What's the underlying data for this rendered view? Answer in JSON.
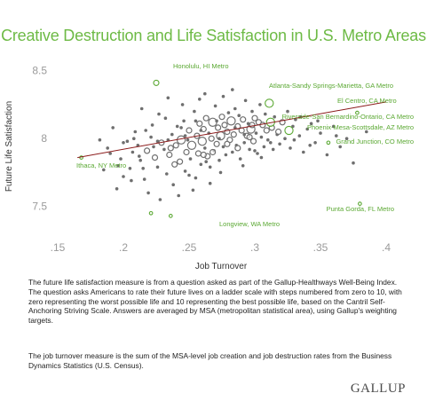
{
  "title": "Creative Destruction and Life Satisfaction in U.S. Metro Areas",
  "notes": [
    "The future life satisfaction measure is from a question asked as part of the Gallup-Healthways Well-Being Index. The question asks Americans to rate their future lives on a ladder scale with steps numbered from zero to 10, with zero representing the worst possible life and 10 representing the best possible life, based on the Cantril Self-Anchoring Striving Scale. Answers are averaged by MSA (metropolitan statistical area), using Gallup's weighting targets.",
    "The job turnover measure is the sum of the MSA-level job creation and job destruction rates from the Business Dynamics Statistics (U.S. Census)."
  ],
  "brand": "GALLUP",
  "colors": {
    "title": "#6dba45",
    "points": "#6f6f6f",
    "highlight": "#5aa832",
    "trend": "#8b1a1a"
  },
  "chart_data": {
    "type": "scatter",
    "title": "Creative Destruction and Life Satisfaction in U.S. Metro Areas",
    "xlabel": "Job Turnover",
    "ylabel": "Future Life Satisfaction",
    "xlim": [
      0.15,
      0.4
    ],
    "ylim": [
      7.4,
      8.55
    ],
    "xticks": [
      0.15,
      0.2,
      0.25,
      0.3,
      0.35,
      0.4
    ],
    "xtick_labels": [
      ".15",
      ".2",
      ".25",
      ".3",
      ".35",
      ".4"
    ],
    "yticks": [
      7.5,
      8,
      8.5
    ],
    "ytick_labels": [
      "7.5",
      "8",
      "8.5"
    ],
    "grid": false,
    "trendline": {
      "x": [
        0.165,
        0.4
      ],
      "y": [
        7.86,
        8.27
      ]
    },
    "labeled_points": [
      {
        "label": "Honolulu, HI Metro",
        "x": 0.225,
        "y": 8.41,
        "size": 2
      },
      {
        "label": "Atlanta-Sandy Springs-Marietta, GA Metro",
        "x": 0.311,
        "y": 8.26,
        "size": 3
      },
      {
        "label": "El Centro, CA Metro",
        "x": 0.378,
        "y": 8.19,
        "size": 1
      },
      {
        "label": "Riverside-San Bernardino-Ontario, CA Metro",
        "x": 0.312,
        "y": 8.12,
        "size": 3
      },
      {
        "label": "Phoenix-Mesa-Scottsdale, AZ Metro",
        "x": 0.326,
        "y": 8.06,
        "size": 3
      },
      {
        "label": "Grand Junction, CO Metro",
        "x": 0.356,
        "y": 7.97,
        "size": 1
      },
      {
        "label": "Ithaca, NY Metro",
        "x": 0.168,
        "y": 7.86,
        "size": 1
      },
      {
        "label": "Punta Gorda, FL Metro",
        "x": 0.38,
        "y": 7.52,
        "size": 1
      },
      {
        "label": "Longview, WA Metro",
        "x": 0.236,
        "y": 7.43,
        "size": 1
      },
      {
        "label": "",
        "x": 0.221,
        "y": 7.45,
        "size": 1
      }
    ],
    "points": [
      [
        0.195,
        7.63,
        1
      ],
      [
        0.2,
        7.72,
        1
      ],
      [
        0.205,
        7.78,
        1
      ],
      [
        0.198,
        7.85,
        1
      ],
      [
        0.207,
        7.9,
        1
      ],
      [
        0.211,
        7.95,
        1
      ],
      [
        0.203,
        7.98,
        1
      ],
      [
        0.209,
        8.05,
        1
      ],
      [
        0.213,
        7.84,
        1
      ],
      [
        0.216,
        7.7,
        1
      ],
      [
        0.218,
        7.91,
        2
      ],
      [
        0.221,
        8.01,
        1
      ],
      [
        0.224,
        7.86,
        2
      ],
      [
        0.226,
        7.79,
        1
      ],
      [
        0.219,
        7.6,
        1
      ],
      [
        0.222,
        8.1,
        1
      ],
      [
        0.227,
        8.18,
        1
      ],
      [
        0.229,
        7.97,
        2
      ],
      [
        0.231,
        7.92,
        1
      ],
      [
        0.233,
        7.74,
        1
      ],
      [
        0.235,
        7.88,
        2
      ],
      [
        0.237,
        8.03,
        1
      ],
      [
        0.238,
        7.66,
        1
      ],
      [
        0.24,
        7.95,
        2
      ],
      [
        0.241,
        8.09,
        1
      ],
      [
        0.243,
        7.83,
        2
      ],
      [
        0.244,
        7.99,
        3
      ],
      [
        0.246,
        8.13,
        1
      ],
      [
        0.247,
        7.76,
        1
      ],
      [
        0.248,
        7.9,
        2
      ],
      [
        0.25,
        8.06,
        2
      ],
      [
        0.251,
        7.85,
        1
      ],
      [
        0.252,
        7.95,
        3
      ],
      [
        0.254,
        8.2,
        1
      ],
      [
        0.255,
        7.71,
        1
      ],
      [
        0.256,
        8.02,
        2
      ],
      [
        0.257,
        7.89,
        2
      ],
      [
        0.258,
        8.11,
        2
      ],
      [
        0.259,
        7.81,
        1
      ],
      [
        0.26,
        7.98,
        3
      ],
      [
        0.261,
        8.07,
        2
      ],
      [
        0.262,
        7.93,
        1
      ],
      [
        0.263,
        8.15,
        2
      ],
      [
        0.264,
        7.87,
        2
      ],
      [
        0.265,
        8.04,
        1
      ],
      [
        0.266,
        7.79,
        1
      ],
      [
        0.267,
        8.0,
        2
      ],
      [
        0.268,
        8.12,
        3
      ],
      [
        0.269,
        7.91,
        1
      ],
      [
        0.27,
        8.24,
        1
      ],
      [
        0.271,
        7.96,
        2
      ],
      [
        0.272,
        8.08,
        2
      ],
      [
        0.273,
        7.84,
        1
      ],
      [
        0.274,
        8.02,
        3
      ],
      [
        0.275,
        8.16,
        2
      ],
      [
        0.276,
        7.94,
        1
      ],
      [
        0.277,
        8.1,
        2
      ],
      [
        0.278,
        7.88,
        1
      ],
      [
        0.279,
        8.05,
        2
      ],
      [
        0.28,
        8.19,
        1
      ],
      [
        0.281,
        7.99,
        2
      ],
      [
        0.282,
        8.13,
        3
      ],
      [
        0.283,
        7.9,
        1
      ],
      [
        0.284,
        8.03,
        2
      ],
      [
        0.285,
        8.22,
        1
      ],
      [
        0.286,
        7.95,
        1
      ],
      [
        0.287,
        8.09,
        2
      ],
      [
        0.288,
        8.17,
        1
      ],
      [
        0.289,
        7.85,
        1
      ],
      [
        0.29,
        8.06,
        2
      ],
      [
        0.291,
        8.14,
        2
      ],
      [
        0.292,
        7.97,
        1
      ],
      [
        0.293,
        8.28,
        1
      ],
      [
        0.294,
        8.02,
        2
      ],
      [
        0.295,
        8.11,
        1
      ],
      [
        0.296,
        7.92,
        1
      ],
      [
        0.297,
        8.07,
        3
      ],
      [
        0.298,
        8.2,
        1
      ],
      [
        0.299,
        7.98,
        2
      ],
      [
        0.3,
        8.15,
        2
      ],
      [
        0.301,
        8.04,
        1
      ],
      [
        0.302,
        7.89,
        1
      ],
      [
        0.303,
        8.12,
        2
      ],
      [
        0.304,
        8.25,
        1
      ],
      [
        0.305,
        8.01,
        1
      ],
      [
        0.306,
        8.1,
        2
      ],
      [
        0.307,
        7.94,
        1
      ],
      [
        0.308,
        8.18,
        1
      ],
      [
        0.309,
        8.06,
        2
      ],
      [
        0.31,
        7.99,
        1
      ],
      [
        0.313,
        8.08,
        2
      ],
      [
        0.315,
        8.16,
        1
      ],
      [
        0.317,
        8.03,
        1
      ],
      [
        0.319,
        7.96,
        1
      ],
      [
        0.321,
        8.12,
        2
      ],
      [
        0.323,
        8.0,
        1
      ],
      [
        0.325,
        8.2,
        1
      ],
      [
        0.327,
        7.93,
        1
      ],
      [
        0.329,
        8.09,
        1
      ],
      [
        0.331,
        8.14,
        1
      ],
      [
        0.334,
        8.02,
        1
      ],
      [
        0.337,
        7.9,
        1
      ],
      [
        0.34,
        8.07,
        1
      ],
      [
        0.343,
        8.11,
        1
      ],
      [
        0.346,
        7.97,
        1
      ],
      [
        0.35,
        8.04,
        1
      ],
      [
        0.355,
        7.88,
        1
      ],
      [
        0.36,
        8.09,
        1
      ],
      [
        0.365,
        7.94,
        1
      ],
      [
        0.37,
        8.0,
        1
      ],
      [
        0.375,
        7.82,
        1
      ],
      [
        0.385,
        8.05,
        1
      ],
      [
        0.188,
        7.93,
        1
      ],
      [
        0.192,
        8.08,
        1
      ],
      [
        0.185,
        7.77,
        1
      ],
      [
        0.214,
        8.22,
        1
      ],
      [
        0.234,
        8.3,
        1
      ],
      [
        0.262,
        8.33,
        1
      ],
      [
        0.283,
        8.36,
        1
      ],
      [
        0.253,
        7.62,
        1
      ],
      [
        0.242,
        7.58,
        1
      ],
      [
        0.228,
        7.55,
        1
      ],
      [
        0.266,
        7.67,
        1
      ],
      [
        0.274,
        7.75,
        1
      ],
      [
        0.291,
        7.8,
        1
      ],
      [
        0.305,
        7.86,
        1
      ],
      [
        0.245,
        8.25,
        1
      ],
      [
        0.258,
        8.29,
        1
      ],
      [
        0.276,
        8.31,
        1
      ],
      [
        0.232,
        8.15,
        1
      ],
      [
        0.217,
        8.06,
        1
      ],
      [
        0.206,
        7.69,
        1
      ],
      [
        0.25,
        7.73,
        1
      ],
      [
        0.239,
        7.81,
        2
      ],
      [
        0.263,
        7.83,
        1
      ],
      [
        0.287,
        7.93,
        2
      ],
      [
        0.296,
        8.01,
        2
      ],
      [
        0.312,
        7.97,
        1
      ],
      [
        0.318,
        8.05,
        2
      ],
      [
        0.33,
        7.99,
        1
      ],
      [
        0.244,
        8.08,
        1
      ],
      [
        0.255,
        8.13,
        1
      ],
      [
        0.268,
        7.9,
        2
      ],
      [
        0.279,
        7.96,
        2
      ],
      [
        0.226,
        7.98,
        1
      ],
      [
        0.212,
        7.87,
        1
      ],
      [
        0.2,
        7.97,
        1
      ],
      [
        0.236,
        7.93,
        2
      ],
      [
        0.249,
        7.99,
        1
      ],
      [
        0.261,
        7.88,
        2
      ],
      [
        0.273,
        8.0,
        1
      ],
      [
        0.285,
        8.08,
        1
      ],
      [
        0.298,
        8.1,
        2
      ],
      [
        0.292,
        8.03,
        1
      ],
      [
        0.271,
        8.13,
        1
      ],
      [
        0.259,
        8.06,
        1
      ],
      [
        0.247,
        8.02,
        1
      ],
      [
        0.234,
        7.99,
        1
      ],
      [
        0.223,
        7.94,
        1
      ],
      [
        0.208,
        8.0,
        1
      ],
      [
        0.19,
        7.89,
        1
      ],
      [
        0.196,
        7.8,
        1
      ],
      [
        0.182,
        7.99,
        1
      ],
      [
        0.215,
        7.78,
        1
      ],
      [
        0.3,
        7.91,
        1
      ],
      [
        0.314,
        7.92,
        1
      ],
      [
        0.335,
        8.16,
        1
      ],
      [
        0.342,
        7.95,
        1
      ],
      [
        0.348,
        8.13,
        1
      ],
      [
        0.362,
        8.02,
        1
      ]
    ]
  }
}
